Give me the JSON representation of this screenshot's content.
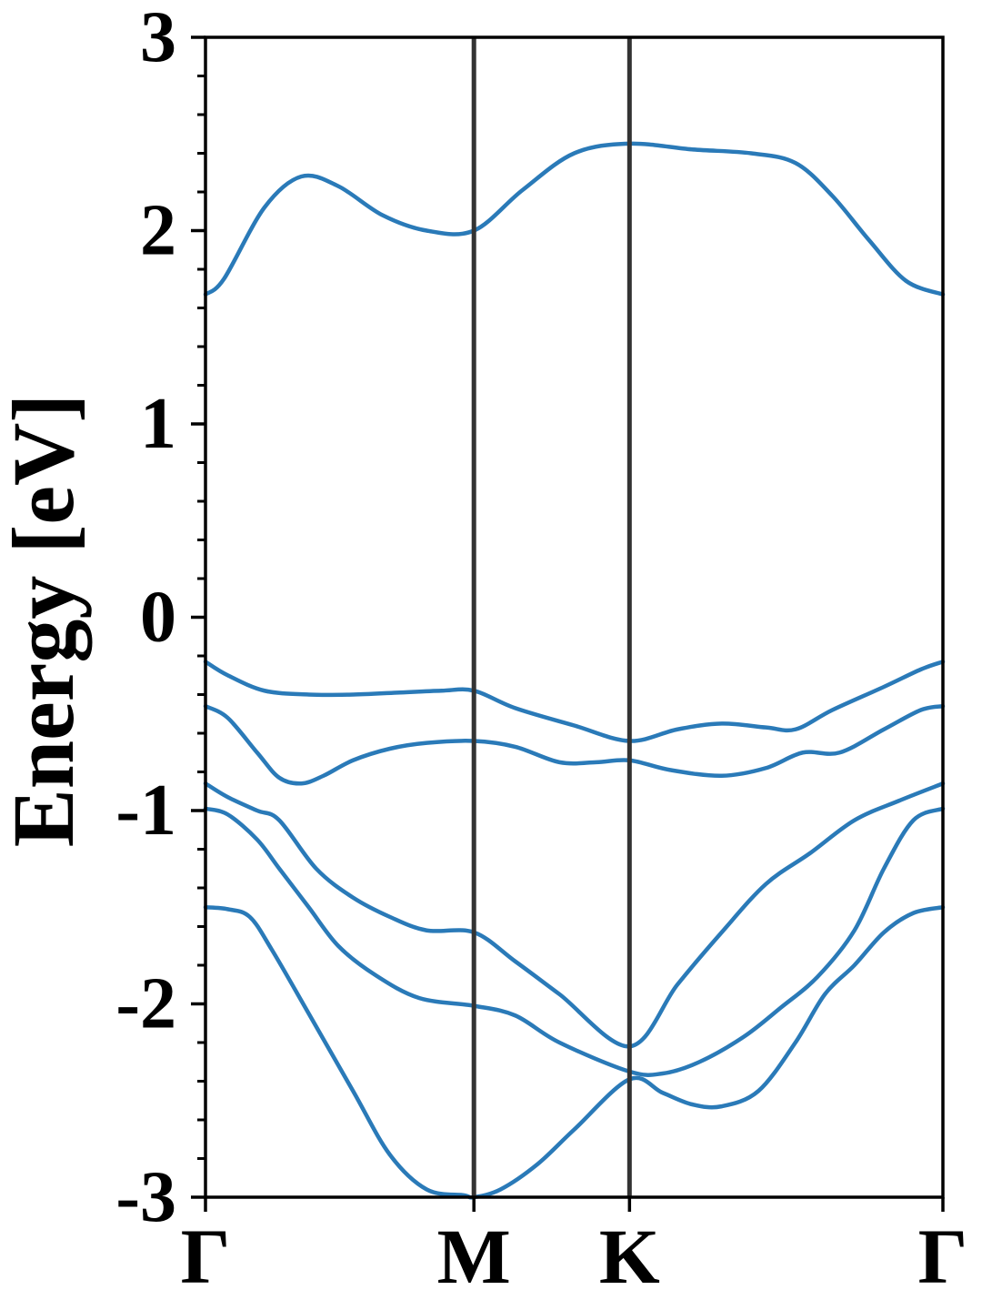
{
  "chart_data": {
    "type": "line",
    "title": "",
    "xlabel": "",
    "ylabel": "Energy [eV]",
    "ylim": [
      -3,
      3
    ],
    "yticks": [
      "3",
      "2",
      "1",
      "0",
      "-1",
      "-2",
      "-3"
    ],
    "ytick_values": [
      3,
      2,
      1,
      0,
      -1,
      -2,
      -3
    ],
    "yminor_step": 0.2,
    "xlim": [
      0,
      1
    ],
    "kpoints": [
      {
        "label": "Γ",
        "x": 0.0
      },
      {
        "label": "M",
        "x": 0.364
      },
      {
        "label": "K",
        "x": 0.575
      },
      {
        "label": "Γ",
        "x": 1.0
      }
    ],
    "line_color": "#2a7ab8",
    "divider_color": "#333333",
    "grid": false,
    "legend": "none",
    "series": [
      {
        "x": [
          0.0,
          0.025,
          0.08,
          0.13,
          0.18,
          0.24,
          0.3,
          0.364,
          0.43,
          0.5,
          0.575,
          0.66,
          0.74,
          0.8,
          0.85,
          0.9,
          0.95,
          1.0
        ],
        "y": [
          1.67,
          1.75,
          2.12,
          2.28,
          2.23,
          2.08,
          2.0,
          2.0,
          2.21,
          2.4,
          2.45,
          2.42,
          2.4,
          2.35,
          2.18,
          1.95,
          1.74,
          1.67
        ]
      },
      {
        "x": [
          0.0,
          0.03,
          0.08,
          0.14,
          0.2,
          0.26,
          0.32,
          0.364,
          0.42,
          0.5,
          0.575,
          0.64,
          0.7,
          0.76,
          0.8,
          0.85,
          0.92,
          0.97,
          1.0
        ],
        "y": [
          -0.23,
          -0.3,
          -0.38,
          -0.4,
          -0.4,
          -0.39,
          -0.38,
          -0.38,
          -0.47,
          -0.56,
          -0.64,
          -0.58,
          -0.55,
          -0.57,
          -0.58,
          -0.48,
          -0.36,
          -0.27,
          -0.23
        ]
      },
      {
        "x": [
          0.0,
          0.03,
          0.07,
          0.1,
          0.13,
          0.16,
          0.2,
          0.25,
          0.3,
          0.364,
          0.42,
          0.48,
          0.53,
          0.575,
          0.63,
          0.7,
          0.76,
          0.81,
          0.86,
          0.92,
          0.97,
          1.0
        ],
        "y": [
          -0.46,
          -0.52,
          -0.7,
          -0.83,
          -0.86,
          -0.82,
          -0.74,
          -0.68,
          -0.65,
          -0.64,
          -0.67,
          -0.75,
          -0.75,
          -0.74,
          -0.79,
          -0.82,
          -0.78,
          -0.7,
          -0.7,
          -0.58,
          -0.48,
          -0.46
        ]
      },
      {
        "x": [
          0.0,
          0.03,
          0.07,
          0.1,
          0.15,
          0.2,
          0.25,
          0.3,
          0.364,
          0.42,
          0.48,
          0.575,
          0.64,
          0.7,
          0.76,
          0.82,
          0.88,
          0.94,
          1.0
        ],
        "y": [
          -0.86,
          -0.93,
          -1.0,
          -1.05,
          -1.3,
          -1.45,
          -1.55,
          -1.62,
          -1.63,
          -1.78,
          -1.95,
          -2.22,
          -1.9,
          -1.63,
          -1.38,
          -1.22,
          -1.05,
          -0.95,
          -0.86
        ]
      },
      {
        "x": [
          0.0,
          0.03,
          0.07,
          0.1,
          0.14,
          0.18,
          0.23,
          0.29,
          0.364,
          0.42,
          0.48,
          0.575,
          0.62,
          0.67,
          0.73,
          0.78,
          0.83,
          0.88,
          0.92,
          0.96,
          1.0
        ],
        "y": [
          -0.99,
          -1.02,
          -1.15,
          -1.3,
          -1.5,
          -1.7,
          -1.85,
          -1.97,
          -2.01,
          -2.06,
          -2.2,
          -2.35,
          -2.36,
          -2.3,
          -2.17,
          -2.02,
          -1.86,
          -1.62,
          -1.3,
          -1.05,
          -0.99
        ]
      },
      {
        "x": [
          0.0,
          0.03,
          0.06,
          0.09,
          0.14,
          0.2,
          0.25,
          0.3,
          0.35,
          0.364,
          0.4,
          0.45,
          0.5,
          0.575,
          0.62,
          0.66,
          0.7,
          0.75,
          0.8,
          0.84,
          0.88,
          0.92,
          0.96,
          1.0
        ],
        "y": [
          -1.5,
          -1.51,
          -1.55,
          -1.72,
          -2.05,
          -2.45,
          -2.78,
          -2.96,
          -2.99,
          -3.0,
          -2.96,
          -2.83,
          -2.65,
          -2.39,
          -2.46,
          -2.52,
          -2.53,
          -2.45,
          -2.2,
          -1.95,
          -1.8,
          -1.63,
          -1.53,
          -1.5
        ]
      }
    ]
  }
}
